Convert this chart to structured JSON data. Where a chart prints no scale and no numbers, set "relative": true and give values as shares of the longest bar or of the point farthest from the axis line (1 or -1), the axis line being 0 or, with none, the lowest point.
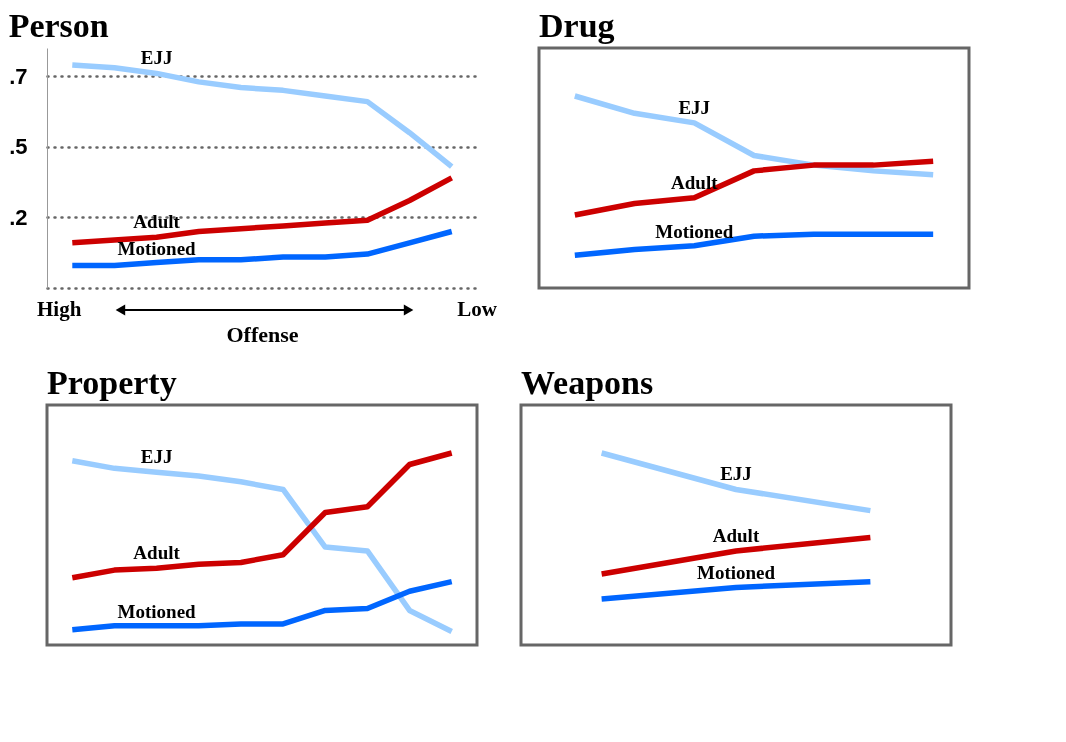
{
  "chart_data": [
    {
      "type": "line",
      "title": "Person",
      "xlabel": "Offense",
      "annotations": [
        "High",
        "Low"
      ],
      "categories": [
        null,
        null,
        null,
        null,
        null,
        null,
        null,
        null,
        null,
        null
      ],
      "series": [
        {
          "name": "EJJ",
          "color": "#99ccff",
          "values": [
            0.79,
            0.78,
            0.76,
            0.73,
            0.71,
            0.7,
            0.68,
            0.66,
            0.55,
            0.43
          ]
        },
        {
          "name": "Adult",
          "color": "#cc0000",
          "values": [
            0.16,
            0.17,
            0.18,
            0.2,
            0.21,
            0.22,
            0.23,
            0.24,
            0.31,
            0.39
          ]
        },
        {
          "name": "Motioned",
          "color": "#0066ff",
          "values": [
            0.08,
            0.08,
            0.09,
            0.1,
            0.1,
            0.11,
            0.11,
            0.12,
            0.16,
            0.2
          ]
        }
      ],
      "ylim": [
        0,
        0.85
      ],
      "yticks": [
        {
          "value": 0,
          "label": null
        },
        {
          "value": 0.25,
          "label": ".2"
        },
        {
          "value": 0.5,
          "label": ".5"
        },
        {
          "value": 0.75,
          "label": ".7"
        }
      ],
      "grid": "y",
      "tick_labels": "y",
      "line_style": "solid"
    },
    {
      "type": "line",
      "title": "Drug",
      "relative": true,
      "categories": [
        null,
        null,
        null,
        null,
        null,
        null,
        null
      ],
      "series": [
        {
          "name": "EJJ",
          "color": "#99ccff",
          "values": [
            1,
            0.91,
            0.86,
            0.69,
            0.64,
            0.61,
            0.59
          ]
        },
        {
          "name": "Adult",
          "color": "#cc0000",
          "values": [
            0.38,
            0.44,
            0.47,
            0.61,
            0.64,
            0.64,
            0.66
          ]
        },
        {
          "name": "Motioned",
          "color": "#0066ff",
          "values": [
            0.17,
            0.2,
            0.22,
            0.27,
            0.28,
            0.28,
            0.28
          ]
        }
      ],
      "tick_labels": false,
      "line_style": "solid"
    },
    {
      "type": "line",
      "title": "Property",
      "relative": true,
      "categories": [
        null,
        null,
        null,
        null,
        null,
        null,
        null,
        null,
        null,
        null
      ],
      "series": [
        {
          "name": "EJJ",
          "color": "#99ccff",
          "values": [
            0.96,
            0.92,
            0.9,
            0.88,
            0.85,
            0.81,
            0.51,
            0.49,
            0.18,
            0.07
          ]
        },
        {
          "name": "Adult",
          "color": "#cc0000",
          "values": [
            0.35,
            0.39,
            0.4,
            0.42,
            0.43,
            0.47,
            0.69,
            0.72,
            0.94,
            1
          ]
        },
        {
          "name": "Motioned",
          "color": "#0066ff",
          "values": [
            0.08,
            0.1,
            0.1,
            0.1,
            0.11,
            0.11,
            0.18,
            0.19,
            0.28,
            0.33
          ]
        }
      ],
      "tick_labels": false,
      "line_style": "solid"
    },
    {
      "type": "line",
      "title": "Weapons",
      "relative": true,
      "categories": [
        null,
        null,
        null
      ],
      "series": [
        {
          "name": "EJJ",
          "color": "#99ccff",
          "values": [
            1,
            0.81,
            0.7
          ]
        },
        {
          "name": "Adult",
          "color": "#cc0000",
          "values": [
            0.37,
            0.49,
            0.56
          ]
        },
        {
          "name": "Motioned",
          "color": "#0066ff",
          "values": [
            0.24,
            0.3,
            0.33
          ]
        }
      ],
      "tick_labels": false,
      "line_style": "solid"
    }
  ]
}
